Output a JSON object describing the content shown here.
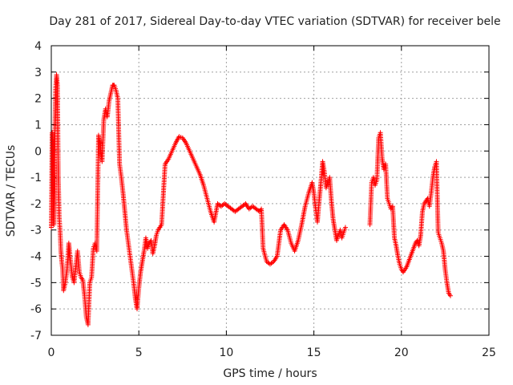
{
  "chart_data": {
    "type": "scatter",
    "title": "Day 281 of 2017, Sidereal Day-to-day VTEC variation (SDTVAR) for receiver bele",
    "xlabel": "GPS time / hours",
    "ylabel": "SDTVAR / TECUs",
    "xlim": [
      0,
      25
    ],
    "ylim": [
      -7,
      4
    ],
    "xticks": [
      0,
      5,
      10,
      15,
      20,
      25
    ],
    "yticks": [
      -7,
      -6,
      -5,
      -4,
      -3,
      -2,
      -1,
      0,
      1,
      2,
      3,
      4
    ],
    "grid": true,
    "marker": "+",
    "series": [
      {
        "name": "SDTVAR",
        "color": "#ff0000",
        "x": [
          0.0,
          0.05,
          0.1,
          0.15,
          0.2,
          0.25,
          0.3,
          0.35,
          0.4,
          0.45,
          0.5,
          0.55,
          0.6,
          0.65,
          0.7,
          0.8,
          0.9,
          1.0,
          1.1,
          1.2,
          1.3,
          1.4,
          1.5,
          1.6,
          1.7,
          1.8,
          1.9,
          2.0,
          2.1,
          2.2,
          2.3,
          2.4,
          2.5,
          2.6,
          2.7,
          2.8,
          2.9,
          3.0,
          3.1,
          3.2,
          3.3,
          3.4,
          3.5,
          3.6,
          3.7,
          3.8,
          3.9,
          4.0,
          4.1,
          4.2,
          4.3,
          4.4,
          4.5,
          4.6,
          4.7,
          4.8,
          4.9,
          5.0,
          5.1,
          5.2,
          5.3,
          5.4,
          5.5,
          5.6,
          5.7,
          5.8,
          5.9,
          6.0,
          6.1,
          6.2,
          6.3,
          6.5,
          6.7,
          6.9,
          7.1,
          7.3,
          7.5,
          7.7,
          7.9,
          8.1,
          8.3,
          8.5,
          8.7,
          8.9,
          9.1,
          9.3,
          9.5,
          9.7,
          9.9,
          10.1,
          10.3,
          10.5,
          10.7,
          10.9,
          11.1,
          11.3,
          11.5,
          11.7,
          11.9,
          12.0,
          12.1,
          12.3,
          12.5,
          12.7,
          12.9,
          13.1,
          13.3,
          13.5,
          13.7,
          13.9,
          14.1,
          14.3,
          14.5,
          14.7,
          14.9,
          15.0,
          15.1,
          15.2,
          15.3,
          15.4,
          15.5,
          15.6,
          15.7,
          15.8,
          15.9,
          16.0,
          16.1,
          16.2,
          16.3,
          16.4,
          16.5,
          16.6,
          16.7,
          16.8,
          18.2,
          18.3,
          18.4,
          18.5,
          18.6,
          18.7,
          18.8,
          18.9,
          19.0,
          19.1,
          19.2,
          19.3,
          19.4,
          19.5,
          19.6,
          19.7,
          19.8,
          19.9,
          20.0,
          20.1,
          20.2,
          20.3,
          20.8,
          20.9,
          21.0,
          21.1,
          21.2,
          21.3,
          21.4,
          21.5,
          21.6,
          21.7,
          21.8,
          21.9,
          22.0,
          22.1,
          22.2,
          22.3,
          22.4,
          22.5,
          22.6,
          22.7,
          22.8
        ],
        "y": [
          -2.9,
          0.7,
          -1.5,
          -2.8,
          0.6,
          2.4,
          2.9,
          2.5,
          -1.0,
          -2.5,
          -3.0,
          -3.8,
          -4.2,
          -4.5,
          -5.3,
          -5.0,
          -4.5,
          -3.5,
          -4.2,
          -4.8,
          -5.0,
          -4.4,
          -3.8,
          -4.6,
          -4.8,
          -4.9,
          -5.5,
          -6.3,
          -6.6,
          -5.0,
          -4.8,
          -3.7,
          -3.5,
          -3.8,
          0.6,
          0.2,
          -0.4,
          1.2,
          1.6,
          1.3,
          1.9,
          2.2,
          2.5,
          2.5,
          2.3,
          2.0,
          -0.5,
          -1.0,
          -1.6,
          -2.3,
          -3.0,
          -3.5,
          -4.0,
          -4.5,
          -5.0,
          -5.6,
          -6.0,
          -5.2,
          -4.6,
          -4.2,
          -3.8,
          -3.3,
          -3.7,
          -3.5,
          -3.4,
          -3.9,
          -3.6,
          -3.2,
          -3.0,
          -2.9,
          -2.8,
          -0.5,
          -0.3,
          0.0,
          0.3,
          0.55,
          0.5,
          0.3,
          0.0,
          -0.3,
          -0.6,
          -0.9,
          -1.3,
          -1.8,
          -2.3,
          -2.7,
          -2.0,
          -2.1,
          -2.0,
          -2.1,
          -2.2,
          -2.3,
          -2.2,
          -2.1,
          -2.0,
          -2.2,
          -2.1,
          -2.2,
          -2.3,
          -2.2,
          -3.7,
          -4.2,
          -4.3,
          -4.2,
          -4.0,
          -3.0,
          -2.8,
          -3.0,
          -3.5,
          -3.8,
          -3.4,
          -2.8,
          -2.1,
          -1.6,
          -1.2,
          -1.6,
          -2.2,
          -2.7,
          -1.9,
          -1.2,
          -0.4,
          -0.8,
          -1.4,
          -1.2,
          -1.0,
          -1.9,
          -2.6,
          -3.0,
          -3.4,
          -3.2,
          -3.0,
          -3.3,
          -3.1,
          -2.9,
          -2.8,
          -1.2,
          -1.0,
          -1.3,
          -1.1,
          0.5,
          0.7,
          -0.3,
          -0.7,
          -0.5,
          -1.8,
          -2.0,
          -2.2,
          -2.1,
          -3.3,
          -3.6,
          -4.0,
          -4.3,
          -4.5,
          -4.6,
          -4.5,
          -4.4,
          -3.5,
          -3.4,
          -3.6,
          -3.2,
          -2.3,
          -2.0,
          -1.9,
          -1.8,
          -2.1,
          -1.6,
          -1.0,
          -0.6,
          -0.4,
          -3.1,
          -3.3,
          -3.5,
          -3.8,
          -4.5,
          -5.0,
          -5.4,
          -5.5
        ]
      }
    ]
  }
}
